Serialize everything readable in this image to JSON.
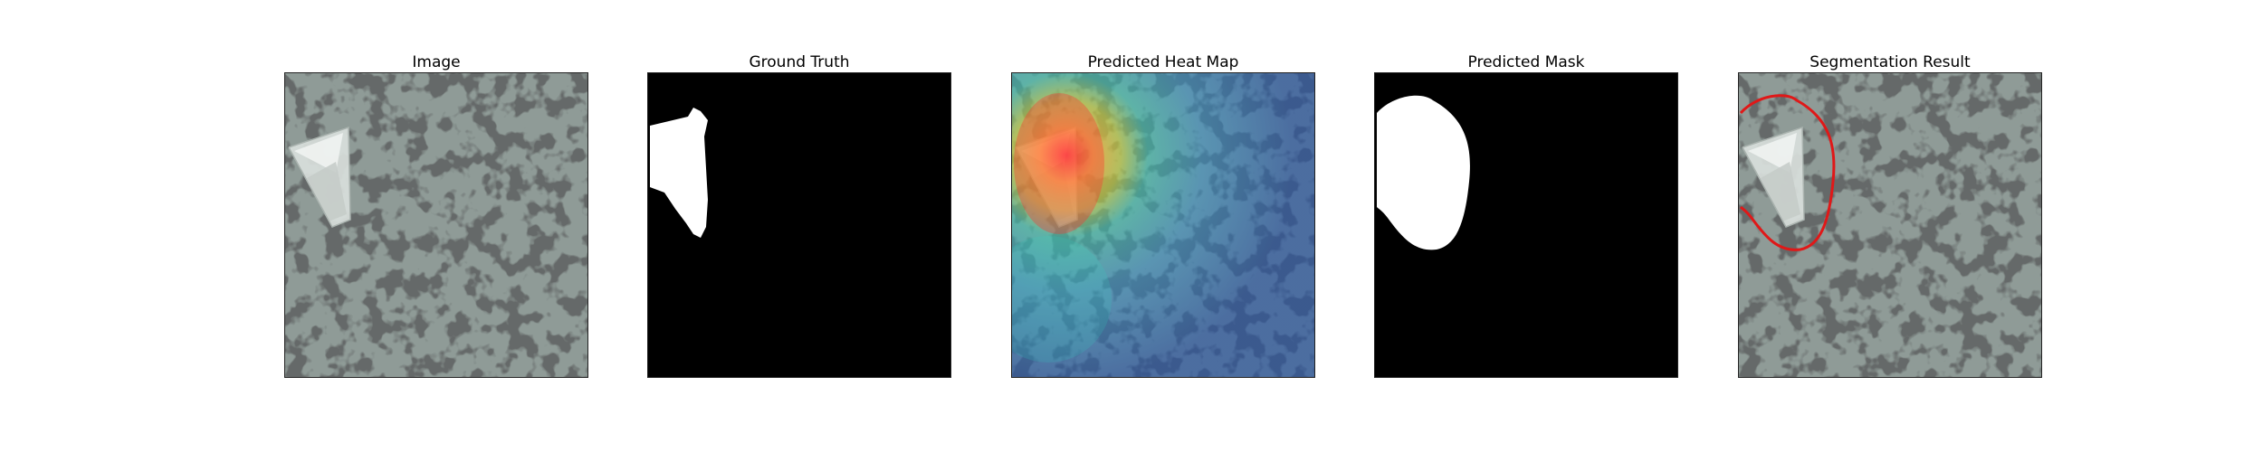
{
  "figure": {
    "panels": [
      {
        "title": "Image"
      },
      {
        "title": "Ground Truth"
      },
      {
        "title": "Predicted Heat Map"
      },
      {
        "title": "Predicted Mask"
      },
      {
        "title": "Segmentation Result"
      }
    ]
  },
  "colors": {
    "texture_base": "#8f9b97",
    "texture_spot": "#2f3232",
    "mask_fg": "#ffffff",
    "mask_bg": "#000000",
    "contour": "#e01818"
  }
}
